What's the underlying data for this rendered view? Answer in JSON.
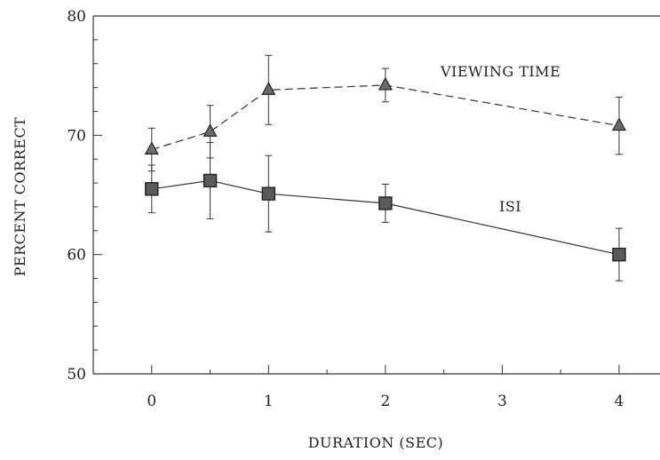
{
  "chart_data": {
    "type": "line",
    "title": "",
    "xlabel": "DURATION (SEC)",
    "ylabel": "PERCENT CORRECT",
    "xlim": [
      -0.5,
      4.35
    ],
    "ylim": [
      50,
      80
    ],
    "x_ticks": [
      "0",
      "1",
      "2",
      "3",
      "4"
    ],
    "y_ticks": [
      "50",
      "60",
      "70",
      "80"
    ],
    "grid": false,
    "series": [
      {
        "name": "VIEWING TIME",
        "style": "dashed",
        "marker": "triangle",
        "x": [
          0,
          0.5,
          1,
          2,
          4
        ],
        "y": [
          68.8,
          70.3,
          73.8,
          74.2,
          70.8
        ],
        "err": [
          1.8,
          2.2,
          2.9,
          1.4,
          2.4
        ]
      },
      {
        "name": "ISI",
        "style": "solid",
        "marker": "square",
        "x": [
          0,
          0.5,
          1,
          2,
          4
        ],
        "y": [
          65.5,
          66.2,
          65.1,
          64.3,
          60.0
        ],
        "err": [
          2.0,
          3.2,
          3.2,
          1.6,
          2.2
        ]
      }
    ]
  }
}
